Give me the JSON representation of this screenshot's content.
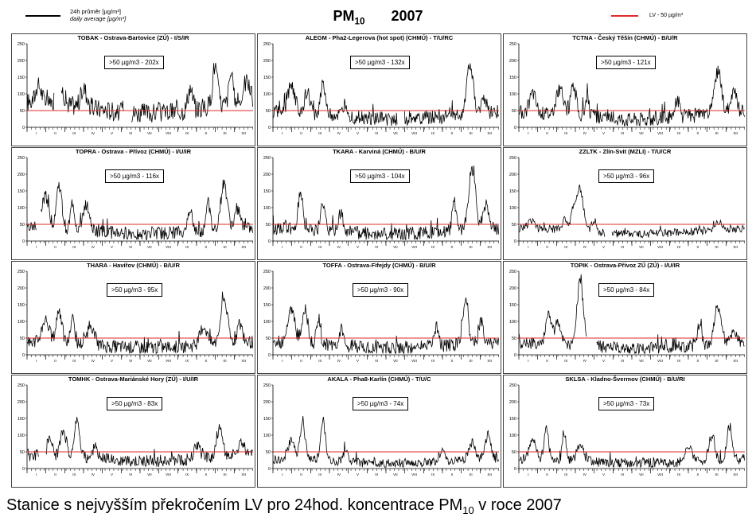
{
  "header": {
    "legend_daily_line1": "24h průměr [µg/m³]",
    "legend_daily_line2": "daily average [µg/m³]",
    "title_pollutant": "PM",
    "title_subscript": "10",
    "title_year": "2007",
    "legend_limit_label": "LV   - 50 µg/m³",
    "daily_color": "#000000",
    "limit_color": "#e02a2a"
  },
  "footer": {
    "caption_before": "Stanice s nejvyšším překročením LV pro 24hod. koncentrace PM",
    "caption_subscript": "10",
    "caption_after": " v roce 2007"
  },
  "chart_data": [
    {
      "type": "line",
      "title": "TOBAK - Ostrava-Bartovice (ZÚ) - I/S/IR",
      "annotation": ">50 µg/m3 - 202x",
      "limit": 50,
      "ylim": [
        0,
        250
      ],
      "yticks": [
        0,
        50,
        100,
        150,
        200,
        250
      ],
      "x_months": [
        "I",
        "II",
        "III",
        "IV",
        "V",
        "VI",
        "VII",
        "VIII",
        "IX",
        "X",
        "XI",
        "XII"
      ],
      "shape": {
        "base": 75,
        "peaks": [
          [
            0.05,
            50
          ],
          [
            0.15,
            45
          ],
          [
            0.25,
            55
          ],
          [
            0.72,
            65
          ],
          [
            0.83,
            120
          ],
          [
            0.9,
            90
          ],
          [
            0.97,
            65
          ]
        ],
        "noise": 30,
        "gaps": [
          [
            0.12,
            0.15
          ],
          [
            0.43,
            0.46
          ]
        ]
      }
    },
    {
      "type": "line",
      "title": "ALEGM - Pha2-Legerova (hot spot) (CHMÚ) - T/U/RC",
      "annotation": ">50 µg/m3 - 132x",
      "limit": 50,
      "ylim": [
        0,
        250
      ],
      "yticks": [
        0,
        50,
        100,
        150,
        200,
        250
      ],
      "x_months": [
        "I",
        "II",
        "III",
        "IV",
        "V",
        "VI",
        "VII",
        "VIII",
        "IX",
        "X",
        "XI",
        "XII"
      ],
      "shape": {
        "base": 45,
        "peaks": [
          [
            0.08,
            85
          ],
          [
            0.15,
            60
          ],
          [
            0.22,
            100
          ],
          [
            0.32,
            40
          ],
          [
            0.87,
            155
          ],
          [
            0.93,
            50
          ]
        ],
        "noise": 22,
        "gaps": [
          [
            0.55,
            0.58
          ]
        ]
      }
    },
    {
      "type": "line",
      "title": "TCTNA - Český Těšín (CHMÚ) - B/U/R",
      "annotation": ">50 µg/m3 - 121x",
      "limit": 50,
      "ylim": [
        0,
        250
      ],
      "yticks": [
        0,
        50,
        100,
        150,
        200,
        250
      ],
      "x_months": [
        "I",
        "II",
        "III",
        "IV",
        "V",
        "VI",
        "VII",
        "VIII",
        "IX",
        "X",
        "XI",
        "XII"
      ],
      "shape": {
        "base": 45,
        "peaks": [
          [
            0.06,
            60
          ],
          [
            0.18,
            75
          ],
          [
            0.24,
            90
          ],
          [
            0.3,
            50
          ],
          [
            0.7,
            55
          ],
          [
            0.88,
            125
          ],
          [
            0.95,
            60
          ]
        ],
        "noise": 22,
        "gaps": []
      }
    },
    {
      "type": "line",
      "title": "TOPRA - Ostrava - Přívoz (CHMÚ) - I/U/IR",
      "annotation": ">50 µg/m3 - 116x",
      "limit": 50,
      "ylim": [
        0,
        250
      ],
      "yticks": [
        0,
        50,
        100,
        150,
        200,
        250
      ],
      "x_months": [
        "I",
        "II",
        "III",
        "IV",
        "V",
        "VI",
        "VII",
        "VIII",
        "IX",
        "X",
        "XI",
        "XII"
      ],
      "shape": {
        "base": 40,
        "peaks": [
          [
            0.08,
            95
          ],
          [
            0.14,
            130
          ],
          [
            0.2,
            80
          ],
          [
            0.26,
            75
          ],
          [
            0.72,
            60
          ],
          [
            0.8,
            85
          ],
          [
            0.87,
            135
          ],
          [
            0.93,
            60
          ]
        ],
        "noise": 20,
        "gaps": [
          [
            0.04,
            0.06
          ]
        ]
      }
    },
    {
      "type": "line",
      "title": "TKARA - Karviná (CHMÚ) - B/U/R",
      "annotation": ">50 µg/m3 - 104x",
      "limit": 50,
      "ylim": [
        0,
        250
      ],
      "yticks": [
        0,
        50,
        100,
        150,
        200,
        250
      ],
      "x_months": [
        "I",
        "II",
        "III",
        "IV",
        "V",
        "VI",
        "VII",
        "VIII",
        "IX",
        "X",
        "XI",
        "XII"
      ],
      "shape": {
        "base": 38,
        "peaks": [
          [
            0.12,
            110
          ],
          [
            0.22,
            85
          ],
          [
            0.3,
            60
          ],
          [
            0.8,
            95
          ],
          [
            0.88,
            180
          ],
          [
            0.94,
            70
          ]
        ],
        "noise": 20,
        "gaps": []
      }
    },
    {
      "type": "line",
      "title": "ZZLTK - Zlín-Svit (MZLI) - T/U/CR",
      "annotation": ">50 µg/m3 - 96x",
      "limit": 50,
      "ylim": [
        0,
        250
      ],
      "yticks": [
        0,
        50,
        100,
        150,
        200,
        250
      ],
      "x_months": [
        "I",
        "II",
        "III",
        "IV",
        "V",
        "VI",
        "VII",
        "VIII",
        "IX",
        "X",
        "XI",
        "XII"
      ],
      "shape": {
        "base": 38,
        "peaks": [
          [
            0.05,
            25
          ],
          [
            0.2,
            35
          ],
          [
            0.24,
            65
          ],
          [
            0.27,
            125
          ],
          [
            0.33,
            30
          ],
          [
            0.88,
            25
          ]
        ],
        "noise": 12,
        "gaps": [
          [
            0.38,
            0.41
          ]
        ]
      }
    },
    {
      "type": "line",
      "title": "THARA - Havířov (CHMÚ) - B/U/R",
      "annotation": ">50 µg/m3 - 95x",
      "limit": 50,
      "ylim": [
        0,
        250
      ],
      "yticks": [
        0,
        50,
        100,
        150,
        200,
        250
      ],
      "x_months": [
        "I",
        "II",
        "III",
        "IV",
        "V",
        "VI",
        "VII",
        "VIII",
        "IX",
        "X",
        "XI",
        "XII"
      ],
      "shape": {
        "base": 38,
        "peaks": [
          [
            0.08,
            70
          ],
          [
            0.14,
            100
          ],
          [
            0.2,
            80
          ],
          [
            0.28,
            60
          ],
          [
            0.78,
            55
          ],
          [
            0.87,
            135
          ],
          [
            0.94,
            55
          ]
        ],
        "noise": 20,
        "gaps": []
      }
    },
    {
      "type": "line",
      "title": "TOFFA - Ostrava-Fifejdy (CHMÚ) - B/U/R",
      "annotation": ">50 µg/m3 - 90x",
      "limit": 50,
      "ylim": [
        0,
        250
      ],
      "yticks": [
        0,
        50,
        100,
        150,
        200,
        250
      ],
      "x_months": [
        "I",
        "II",
        "III",
        "IV",
        "V",
        "VI",
        "VII",
        "VIII",
        "IX",
        "X",
        "XI",
        "XII"
      ],
      "shape": {
        "base": 38,
        "peaks": [
          [
            0.08,
            95
          ],
          [
            0.14,
            105
          ],
          [
            0.2,
            75
          ],
          [
            0.3,
            50
          ],
          [
            0.72,
            55
          ],
          [
            0.85,
            125
          ],
          [
            0.92,
            60
          ]
        ],
        "noise": 20,
        "gaps": []
      }
    },
    {
      "type": "line",
      "title": "TOPIK - Ostrava-Přívoz ZÚ (ZÚ) - I/U/IR",
      "annotation": ">50 µg/m3 - 84x",
      "limit": 50,
      "ylim": [
        0,
        250
      ],
      "yticks": [
        0,
        50,
        100,
        150,
        200,
        250
      ],
      "x_months": [
        "I",
        "II",
        "III",
        "IV",
        "V",
        "VI",
        "VII",
        "VIII",
        "IX",
        "X",
        "XI",
        "XII"
      ],
      "shape": {
        "base": 35,
        "peaks": [
          [
            0.13,
            90
          ],
          [
            0.17,
            60
          ],
          [
            0.27,
            190
          ],
          [
            0.33,
            40
          ],
          [
            0.8,
            55
          ],
          [
            0.88,
            115
          ],
          [
            0.95,
            40
          ]
        ],
        "noise": 18,
        "gaps": [
          [
            0.3,
            0.34
          ]
        ]
      }
    },
    {
      "type": "line",
      "title": "TOMHK - Ostrava-Mariánské Hory (ZÚ) - I/U/IR",
      "annotation": ">50 µg/m3 - 83x",
      "limit": 50,
      "ylim": [
        0,
        250
      ],
      "yticks": [
        0,
        50,
        100,
        150,
        200,
        250
      ],
      "x_months": [
        "I",
        "II",
        "III",
        "IV",
        "V",
        "VI",
        "VII",
        "VIII",
        "IX",
        "X",
        "XI",
        "XII"
      ],
      "shape": {
        "base": 40,
        "peaks": [
          [
            0.1,
            65
          ],
          [
            0.16,
            75
          ],
          [
            0.22,
            125
          ],
          [
            0.3,
            50
          ],
          [
            0.75,
            45
          ],
          [
            0.85,
            85
          ],
          [
            0.95,
            40
          ]
        ],
        "noise": 18,
        "gaps": [
          [
            0.05,
            0.08
          ]
        ]
      }
    },
    {
      "type": "line",
      "title": "AKALA - Pha8-Karlín (CHMÚ) - T/U/C",
      "annotation": ">50 µg/m3 - 74x",
      "limit": 50,
      "ylim": [
        0,
        250
      ],
      "yticks": [
        0,
        50,
        100,
        150,
        200,
        250
      ],
      "x_months": [
        "I",
        "II",
        "III",
        "IV",
        "V",
        "VI",
        "VII",
        "VIII",
        "IX",
        "X",
        "XI",
        "XII"
      ],
      "shape": {
        "base": 28,
        "peaks": [
          [
            0.08,
            55
          ],
          [
            0.13,
            110
          ],
          [
            0.22,
            120
          ],
          [
            0.32,
            35
          ],
          [
            0.75,
            30
          ],
          [
            0.88,
            50
          ],
          [
            0.95,
            75
          ]
        ],
        "noise": 14,
        "gaps": []
      }
    },
    {
      "type": "line",
      "title": "SKLSA - Kladno-Švermov (CHMÚ) - B/U/RI",
      "annotation": ">50 µg/m3 - 73x",
      "limit": 50,
      "ylim": [
        0,
        250
      ],
      "yticks": [
        0,
        50,
        100,
        150,
        200,
        250
      ],
      "x_months": [
        "I",
        "II",
        "III",
        "IV",
        "V",
        "VI",
        "VII",
        "VIII",
        "IX",
        "X",
        "XI",
        "XII"
      ],
      "shape": {
        "base": 28,
        "peaks": [
          [
            0.06,
            60
          ],
          [
            0.12,
            90
          ],
          [
            0.2,
            75
          ],
          [
            0.27,
            55
          ],
          [
            0.75,
            45
          ],
          [
            0.85,
            70
          ],
          [
            0.93,
            95
          ]
        ],
        "noise": 15,
        "gaps": []
      }
    }
  ]
}
